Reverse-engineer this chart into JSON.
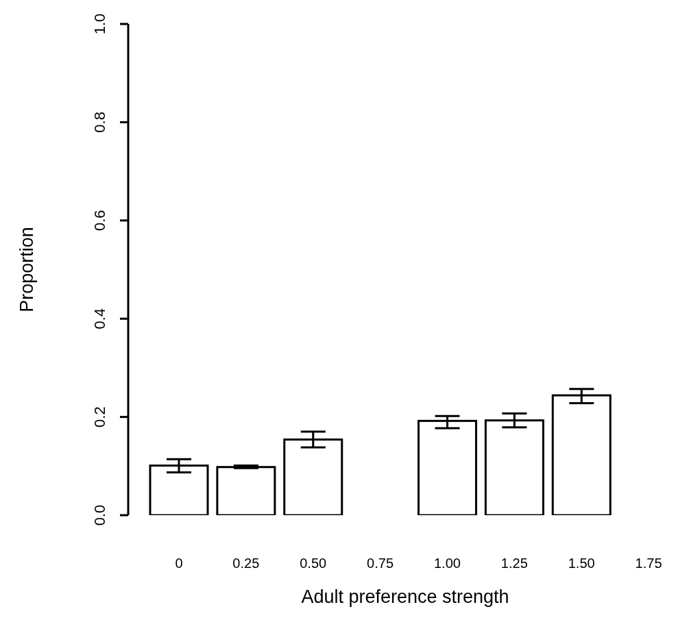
{
  "chart_data": {
    "type": "bar",
    "xlabel": "Adult preference strength",
    "ylabel": "Proportion",
    "categories": [
      "0",
      "0.25",
      "0.50",
      "0.75",
      "1.00",
      "1.25",
      "1.50",
      "1.75"
    ],
    "values": [
      0.101,
      0.098,
      0.154,
      0,
      0.192,
      0.193,
      0.244,
      0
    ],
    "errors": [
      [
        0.087,
        0.114
      ],
      [
        0.096,
        0.101
      ],
      [
        0.138,
        0.17
      ],
      null,
      [
        0.177,
        0.202
      ],
      [
        0.179,
        0.207
      ],
      [
        0.228,
        0.257
      ],
      null
    ],
    "color": "#ffffff",
    "ylim": [
      0,
      1
    ],
    "yticks": [
      {
        "value": 0,
        "label": "0.0"
      },
      0.2,
      0.4,
      0.6,
      0.8,
      {
        "value": 1,
        "label": "1.0"
      }
    ],
    "grid": false,
    "legend": false
  }
}
